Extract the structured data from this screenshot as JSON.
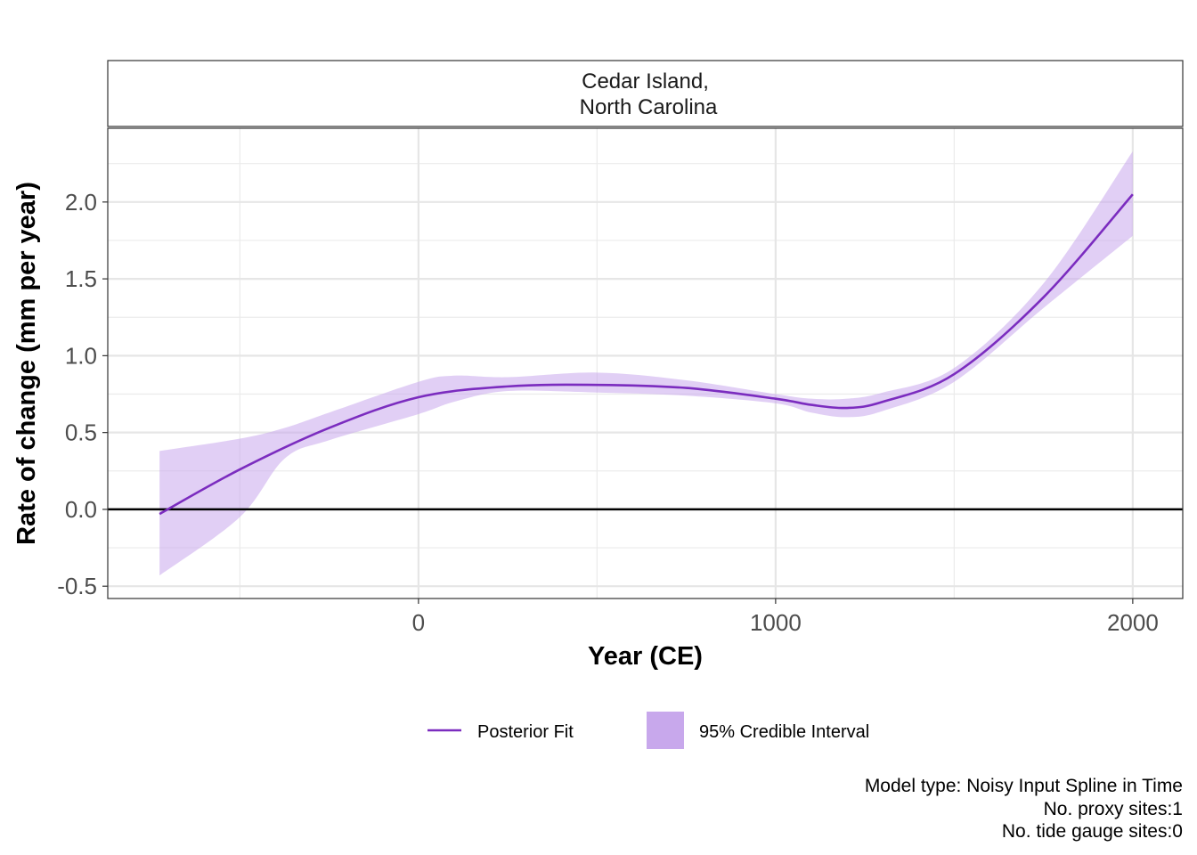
{
  "chart_data": {
    "type": "line",
    "facet_title": [
      "Cedar Island,",
      "North Carolina"
    ],
    "xlabel": "Year (CE)",
    "ylabel": "Rate of change (mm per year)",
    "xlim": [
      -870,
      2140
    ],
    "ylim": [
      -0.58,
      2.48
    ],
    "x_ticks": [
      0,
      1000,
      2000
    ],
    "x_tick_labels": [
      "0",
      "1000",
      "2000"
    ],
    "y_ticks": [
      -0.5,
      0.0,
      0.5,
      1.0,
      1.5,
      2.0
    ],
    "y_tick_labels": [
      "-0.5",
      "0.0",
      "0.5",
      "1.0",
      "1.5",
      "2.0"
    ],
    "x_minor_ticks": [
      -500,
      500,
      1500
    ],
    "y_minor_ticks": [
      -0.25,
      0.25,
      0.75,
      1.25,
      1.75,
      2.25
    ],
    "grid": true,
    "hline": 0,
    "legend_position": "bottom",
    "colors": {
      "line": "#7b2cbf",
      "band": "#c8a8ec",
      "zero_line": "#000000"
    },
    "series": [
      {
        "name": "Posterior Fit",
        "kind": "line",
        "x": [
          -725,
          -500,
          -250,
          0,
          250,
          500,
          750,
          1000,
          1100,
          1200,
          1300,
          1500,
          1750,
          2000
        ],
        "y": [
          -0.03,
          0.26,
          0.53,
          0.73,
          0.8,
          0.81,
          0.79,
          0.72,
          0.68,
          0.66,
          0.7,
          0.88,
          1.38,
          2.05
        ]
      },
      {
        "name": "95% Credible Interval",
        "kind": "band",
        "x": [
          -725,
          -500,
          -375,
          -250,
          0,
          100,
          250,
          500,
          750,
          1000,
          1100,
          1200,
          1300,
          1500,
          1750,
          2000
        ],
        "lower": [
          -0.43,
          -0.05,
          0.33,
          0.45,
          0.62,
          0.7,
          0.77,
          0.76,
          0.74,
          0.69,
          0.63,
          0.6,
          0.64,
          0.83,
          1.31,
          1.78
        ],
        "upper": [
          0.38,
          0.46,
          0.53,
          0.63,
          0.83,
          0.87,
          0.86,
          0.89,
          0.84,
          0.75,
          0.72,
          0.72,
          0.76,
          0.92,
          1.47,
          2.33
        ]
      }
    ],
    "caption": [
      "Model type: Noisy Input Spline in Time",
      "No. proxy sites:1",
      "No. tide gauge sites:0"
    ]
  }
}
